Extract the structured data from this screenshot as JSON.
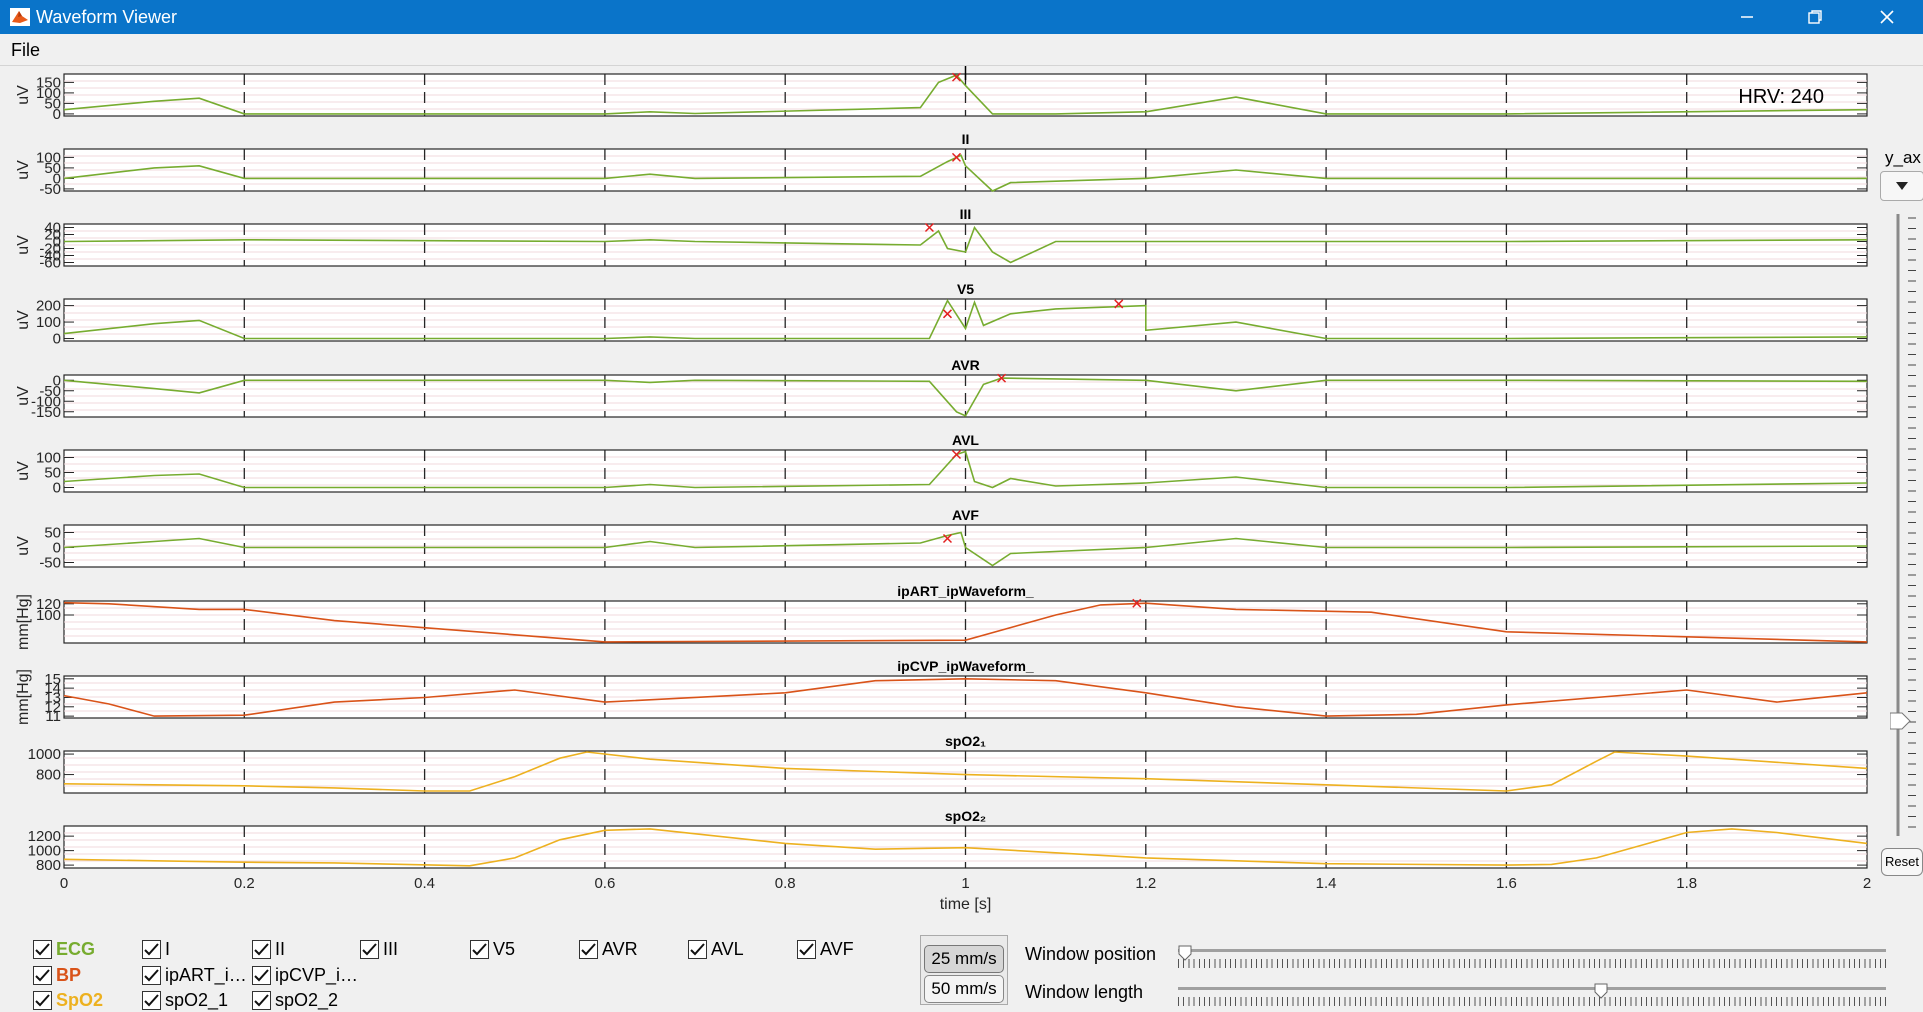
{
  "window": {
    "title": "Waveform Viewer",
    "icon": "matlab-icon"
  },
  "menu": {
    "items": [
      "File"
    ]
  },
  "hrv": {
    "label": "HRV: 240"
  },
  "x_axis": {
    "label": "time [s]"
  },
  "yax_control": {
    "label": "y_ax"
  },
  "reset": {
    "label": "Reset"
  },
  "colors": {
    "ecg": "#77ac30",
    "bp": "#d95319",
    "spo2": "#edb120",
    "marker": "#e32020"
  },
  "chart_data": [
    {
      "type": "line",
      "title": "",
      "ylabel": "uV",
      "yticks": [
        "0",
        "50",
        "100",
        "150"
      ],
      "ylim": [
        -10,
        190
      ],
      "color": "#77ac30",
      "x": [
        0,
        0.1,
        0.15,
        0.2,
        0.6,
        0.65,
        0.7,
        0.95,
        0.97,
        0.99,
        1.0,
        1.03,
        1.1,
        1.2,
        1.3,
        1.4,
        1.5,
        1.6,
        2.0
      ],
      "y": [
        20,
        60,
        75,
        0,
        0,
        10,
        2,
        30,
        150,
        185,
        135,
        0,
        0,
        10,
        80,
        0,
        0,
        0,
        20
      ],
      "markers": [
        {
          "x": 0.99,
          "y": 175
        }
      ]
    },
    {
      "type": "line",
      "title": "II",
      "ylabel": "uV",
      "yticks": [
        "100",
        "50",
        "0",
        "-50"
      ],
      "ylim": [
        -60,
        140
      ],
      "color": "#77ac30",
      "x": [
        0,
        0.1,
        0.15,
        0.2,
        0.6,
        0.65,
        0.7,
        0.95,
        0.98,
        0.995,
        1.0,
        1.03,
        1.05,
        1.2,
        1.3,
        1.4,
        1.5,
        1.6,
        2.0
      ],
      "y": [
        0,
        50,
        60,
        0,
        0,
        20,
        0,
        10,
        80,
        110,
        60,
        -60,
        -20,
        0,
        40,
        0,
        0,
        0,
        0
      ],
      "markers": [
        {
          "x": 0.99,
          "y": 100
        }
      ]
    },
    {
      "type": "line",
      "title": "III",
      "ylabel": "uV",
      "yticks": [
        "40",
        "20",
        "0",
        "-20",
        "-40",
        "-60"
      ],
      "ylim": [
        -70,
        50
      ],
      "color": "#77ac30",
      "x": [
        0,
        0.2,
        0.6,
        0.65,
        0.7,
        0.95,
        0.97,
        0.98,
        1.0,
        1.01,
        1.03,
        1.05,
        1.1,
        1.3,
        1.5,
        1.6,
        2.0
      ],
      "y": [
        0,
        5,
        0,
        5,
        0,
        -10,
        30,
        -20,
        -30,
        40,
        -30,
        -60,
        0,
        0,
        0,
        0,
        5
      ],
      "markers": [
        {
          "x": 0.96,
          "y": 40
        }
      ]
    },
    {
      "type": "line",
      "title": "V5",
      "ylabel": "uV",
      "yticks": [
        "0",
        "100",
        "200"
      ],
      "ylim": [
        -15,
        240
      ],
      "color": "#77ac30",
      "x": [
        0,
        0.1,
        0.15,
        0.2,
        0.6,
        0.65,
        0.7,
        0.96,
        0.98,
        1.0,
        1.01,
        1.02,
        1.05,
        1.1,
        1.2,
        1.2,
        1.3,
        1.4,
        1.6,
        2.0
      ],
      "y": [
        30,
        90,
        110,
        0,
        0,
        10,
        0,
        0,
        230,
        60,
        220,
        80,
        150,
        180,
        200,
        50,
        100,
        0,
        0,
        10
      ],
      "markers": [
        {
          "x": 0.98,
          "y": 150
        },
        {
          "x": 1.17,
          "y": 210
        }
      ]
    },
    {
      "type": "line",
      "title": "AVR",
      "ylabel": "uV",
      "yticks": [
        "0",
        "-50",
        "-100",
        "-150"
      ],
      "ylim": [
        -175,
        25
      ],
      "color": "#77ac30",
      "x": [
        0,
        0.1,
        0.15,
        0.2,
        0.6,
        0.65,
        0.7,
        0.96,
        0.99,
        1.0,
        1.02,
        1.04,
        1.2,
        1.3,
        1.4,
        1.6,
        2.0
      ],
      "y": [
        0,
        -40,
        -60,
        0,
        0,
        -10,
        0,
        -5,
        -150,
        -170,
        -20,
        10,
        0,
        -50,
        0,
        0,
        -5
      ],
      "markers": [
        {
          "x": 1.04,
          "y": 10
        }
      ]
    },
    {
      "type": "line",
      "title": "AVL",
      "ylabel": "uV",
      "yticks": [
        "0",
        "50",
        "100"
      ],
      "ylim": [
        -15,
        125
      ],
      "color": "#77ac30",
      "x": [
        0,
        0.1,
        0.15,
        0.2,
        0.6,
        0.65,
        0.7,
        0.96,
        0.99,
        1.0,
        1.01,
        1.03,
        1.05,
        1.1,
        1.2,
        1.3,
        1.4,
        1.6,
        2.0
      ],
      "y": [
        20,
        40,
        45,
        0,
        0,
        10,
        0,
        10,
        110,
        120,
        20,
        0,
        30,
        5,
        15,
        35,
        0,
        0,
        15
      ],
      "markers": [
        {
          "x": 0.99,
          "y": 110
        }
      ]
    },
    {
      "type": "line",
      "title": "AVF",
      "ylabel": "uV",
      "yticks": [
        "50",
        "0",
        "-50"
      ],
      "ylim": [
        -65,
        75
      ],
      "color": "#77ac30",
      "x": [
        0,
        0.1,
        0.15,
        0.2,
        0.6,
        0.65,
        0.7,
        0.95,
        0.98,
        0.995,
        1.0,
        1.03,
        1.05,
        1.2,
        1.3,
        1.4,
        1.6,
        2.0
      ],
      "y": [
        0,
        20,
        30,
        0,
        0,
        20,
        0,
        15,
        40,
        50,
        0,
        -60,
        -20,
        0,
        30,
        0,
        0,
        5
      ],
      "markers": [
        {
          "x": 0.98,
          "y": 30
        }
      ]
    },
    {
      "type": "line",
      "title": "ipART_ipWaveform_",
      "ylabel": "mm[Hg]",
      "yticks": [
        "120",
        "100"
      ],
      "ylim": [
        50,
        125
      ],
      "color": "#d95319",
      "x": [
        0,
        0.05,
        0.15,
        0.2,
        0.3,
        0.6,
        1.0,
        1.1,
        1.15,
        1.2,
        1.3,
        1.45,
        1.6,
        2.0
      ],
      "y": [
        122,
        120,
        110,
        110,
        90,
        52,
        55,
        100,
        118,
        121,
        110,
        105,
        70,
        52
      ],
      "markers": [
        {
          "x": 1.19,
          "y": 121
        }
      ]
    },
    {
      "type": "line",
      "title": "ipCVP_ipWaveform_",
      "ylabel": "mm[Hg]",
      "yticks": [
        "15",
        "14",
        "13",
        "12",
        "11"
      ],
      "ylim": [
        10.8,
        15.3
      ],
      "color": "#d95319",
      "x": [
        0,
        0.05,
        0.1,
        0.2,
        0.3,
        0.4,
        0.5,
        0.6,
        0.8,
        0.9,
        1.0,
        1.1,
        1.2,
        1.3,
        1.4,
        1.5,
        1.6,
        1.8,
        1.9,
        2.0
      ],
      "y": [
        13.2,
        12.3,
        11.0,
        11.1,
        12.5,
        13.0,
        13.8,
        12.5,
        13.5,
        14.8,
        15.0,
        14.8,
        13.5,
        12.0,
        11.0,
        11.2,
        12.2,
        13.8,
        12.5,
        13.5
      ],
      "markers": []
    },
    {
      "type": "line",
      "title": "spO2₁",
      "ylabel": "",
      "yticks": [
        "1000",
        "800"
      ],
      "ylim": [
        620,
        1030
      ],
      "color": "#edb120",
      "x": [
        0,
        0.1,
        0.2,
        0.3,
        0.4,
        0.45,
        0.5,
        0.55,
        0.58,
        0.65,
        0.8,
        1.0,
        1.2,
        1.4,
        1.6,
        1.65,
        1.7,
        1.72,
        1.8,
        1.9,
        2.0
      ],
      "y": [
        710,
        700,
        690,
        670,
        640,
        640,
        780,
        960,
        1020,
        950,
        860,
        800,
        760,
        700,
        640,
        700,
        930,
        1020,
        980,
        920,
        860
      ],
      "markers": []
    },
    {
      "type": "line",
      "title": "spO2₂",
      "ylabel": "",
      "yticks": [
        "1200",
        "1000",
        "800"
      ],
      "ylim": [
        760,
        1340
      ],
      "color": "#edb120",
      "x": [
        0,
        0.1,
        0.2,
        0.3,
        0.45,
        0.5,
        0.55,
        0.6,
        0.65,
        0.8,
        0.9,
        1.0,
        1.2,
        1.4,
        1.6,
        1.65,
        1.7,
        1.8,
        1.85,
        1.9,
        2.0
      ],
      "y": [
        880,
        860,
        840,
        830,
        790,
        900,
        1150,
        1280,
        1300,
        1100,
        1020,
        1040,
        900,
        820,
        800,
        810,
        900,
        1250,
        1300,
        1250,
        1100
      ],
      "markers": []
    }
  ],
  "shared_x": {
    "xlim": [
      0,
      2
    ],
    "xticks": [
      "0",
      "0.2",
      "0.4",
      "0.6",
      "0.8",
      "1",
      "1.2",
      "1.4",
      "1.6",
      "1.8",
      "2"
    ]
  },
  "controls": {
    "groups": [
      {
        "label": "ECG",
        "color": "#77ac30",
        "checked": true
      },
      {
        "label": "BP",
        "color": "#d95319",
        "checked": true
      },
      {
        "label": "SpO2",
        "color": "#edb120",
        "checked": true
      }
    ],
    "ecg_channels": [
      "I",
      "II",
      "III",
      "V5",
      "AVR",
      "AVL",
      "AVF"
    ],
    "bp_channels": [
      "ipART_i…",
      "ipCVP_i…"
    ],
    "spo2_channels": [
      "spO2_1",
      "spO2_2"
    ],
    "speed_buttons": [
      "25 mm/s",
      "50 mm/s"
    ],
    "window_position_label": "Window position",
    "window_position_value": 0.0,
    "window_length_label": "Window length",
    "window_length_value": 0.6
  }
}
